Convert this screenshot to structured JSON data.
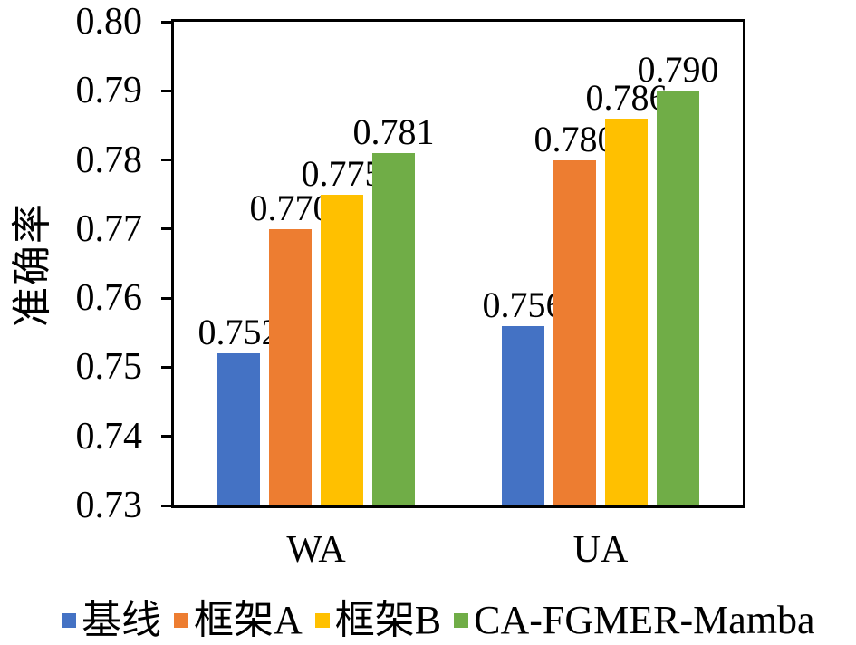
{
  "figure": {
    "background": "#ffffff",
    "axis_color": "#000000"
  },
  "chart_data": {
    "type": "bar",
    "title": "",
    "xlabel": "",
    "ylabel": "准确率",
    "categories": [
      "WA",
      "UA"
    ],
    "series": [
      {
        "name": "基线",
        "color": "#4472C4",
        "values": [
          0.752,
          0.756
        ]
      },
      {
        "name": "框架A",
        "color": "#ED7D31",
        "values": [
          0.77,
          0.78
        ]
      },
      {
        "name": "框架B",
        "color": "#FFC000",
        "values": [
          0.775,
          0.786
        ]
      },
      {
        "name": "CA-FGMER-Mamba",
        "color": "#70AD47",
        "values": [
          0.781,
          0.79
        ]
      }
    ],
    "ylim": [
      0.73,
      0.8
    ],
    "ytick_labels": [
      "0.80",
      "0.79",
      "0.78",
      "0.77",
      "0.76",
      "0.75",
      "0.74",
      "0.73"
    ],
    "value_label_decimals": 3,
    "grid": false,
    "legend_position": "bottom"
  }
}
